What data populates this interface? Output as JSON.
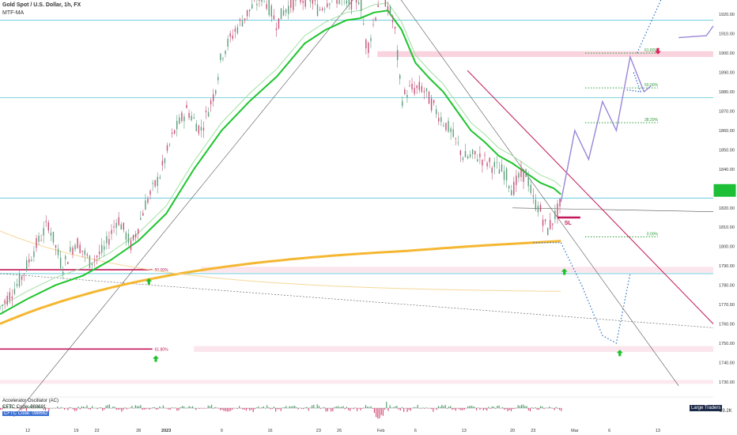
{
  "header": {
    "symbol_title": "Gold Spot / U.S. Dollar, 1h, FX",
    "indicator": "MTF-MA"
  },
  "oscillator": {
    "title": "Accelerator Oscillator (AC)",
    "line2": "CFTC Code: 088691",
    "line3": "CFTC Code: 098662",
    "right_label": "29.2K",
    "large_traders": "Large Traders"
  },
  "colors": {
    "background": "#ffffff",
    "cyan_level": "#5bc6d6",
    "ma_green": "#1ec42e",
    "ma_light": "#9fe0a3",
    "orange_ma": "#f5b731",
    "orange_thin": "#f7d79a",
    "crimson": "#c2185b",
    "pink_zone": "#f8c8d6",
    "fib_green": "#2e9e3a",
    "projection_purple": "#9a86d8",
    "projection_blue": "#2b6fc4",
    "price_badge": "#1dbf36"
  },
  "chart_data": {
    "type": "line",
    "title": "Gold Spot / U.S. Dollar, 1h, FX",
    "ylim": [
      1723,
      1925
    ],
    "y_ticks": [
      1920,
      1910,
      1900,
      1890,
      1880,
      1870,
      1860,
      1850,
      1840,
      1830,
      1820,
      1810,
      1800,
      1790,
      1780,
      1770,
      1760,
      1750,
      1740,
      1730
    ],
    "x_ticks": [
      "12",
      "19",
      "22",
      "28",
      "2023",
      "9",
      "16",
      "23",
      "26",
      "Feb",
      "6",
      "13",
      "20",
      "23",
      "Mar",
      "6",
      "13"
    ],
    "x_tick_days": [
      0,
      7,
      10,
      16,
      20,
      28,
      35,
      42,
      45,
      51,
      56,
      63,
      70,
      73,
      79,
      84,
      91
    ],
    "x_range_days": [
      -4,
      99
    ],
    "price_series": {
      "name": "XAUUSD",
      "days": [
        -4,
        -1,
        1,
        3,
        5,
        7,
        9,
        11,
        13,
        15,
        17,
        19,
        21,
        23,
        25,
        27,
        28,
        30,
        32,
        34,
        36,
        37,
        39,
        41,
        42,
        44,
        46,
        48,
        49,
        50,
        51,
        52,
        53,
        54,
        55,
        57,
        59,
        61,
        63,
        65,
        67,
        69,
        70,
        71,
        72,
        73,
        74,
        75,
        76,
        77
      ],
      "values": [
        1768,
        1783,
        1799,
        1812,
        1789,
        1803,
        1792,
        1798,
        1815,
        1800,
        1822,
        1836,
        1858,
        1871,
        1860,
        1880,
        1899,
        1912,
        1922,
        1930,
        1915,
        1922,
        1928,
        1928,
        1922,
        1930,
        1925,
        1929,
        1901,
        1916,
        1932,
        1925,
        1913,
        1876,
        1881,
        1882,
        1870,
        1860,
        1846,
        1847,
        1842,
        1838,
        1829,
        1836,
        1838,
        1824,
        1819,
        1808,
        1815,
        1822
      ]
    },
    "ma_series": {
      "name": "MTF-MA",
      "days": [
        -4,
        0,
        4,
        8,
        12,
        16,
        20,
        24,
        28,
        32,
        36,
        40,
        43,
        46,
        48,
        50,
        52,
        54,
        56,
        58,
        60,
        62,
        64,
        66,
        68,
        70,
        72,
        74,
        76,
        77
      ],
      "values": [
        1765,
        1773,
        1780,
        1785,
        1793,
        1803,
        1817,
        1840,
        1860,
        1875,
        1888,
        1905,
        1912,
        1917,
        1918,
        1921,
        1922,
        1912,
        1895,
        1887,
        1880,
        1870,
        1860,
        1854,
        1847,
        1843,
        1838,
        1833,
        1830,
        1827
      ]
    },
    "horizontal_levels": [
      1917,
      1877,
      1825,
      1786
    ],
    "fibonacci_right": [
      {
        "label": "61.80%",
        "value": 1900
      },
      {
        "label": "50.00%",
        "value": 1882
      },
      {
        "label": "38.20%",
        "value": 1864
      },
      {
        "label": "0.00%",
        "value": 1805
      }
    ],
    "fibonacci_left": [
      {
        "label": "50.00%",
        "value": 1788
      },
      {
        "label": "61.80%",
        "value": 1747
      }
    ],
    "annotations": [
      {
        "label": "SL",
        "value": 1815
      }
    ],
    "current_price_badge": 1829,
    "projection_up": {
      "days": [
        77,
        79,
        81,
        83,
        85,
        87,
        89,
        90
      ],
      "values": [
        1823,
        1860,
        1845,
        1875,
        1860,
        1898,
        1880,
        1883
      ]
    },
    "projection_down": {
      "days": [
        77,
        80,
        83,
        85,
        87
      ],
      "values": [
        1802,
        1780,
        1754,
        1750,
        1786
      ]
    }
  }
}
